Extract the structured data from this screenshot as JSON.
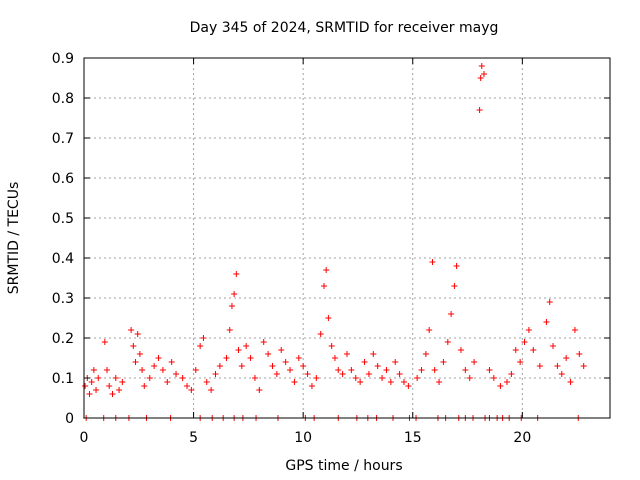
{
  "chart_data": {
    "type": "scatter",
    "title": "Day 345 of 2024, SRMTID for receiver mayg",
    "xlabel": "GPS time / hours",
    "ylabel": "SRMTID / TECUs",
    "xlim": [
      0,
      24
    ],
    "ylim": [
      0,
      0.9
    ],
    "xticks": [
      0,
      5,
      10,
      15,
      20
    ],
    "xtick_labels": [
      "0",
      "5",
      "10",
      "15",
      "20"
    ],
    "yticks": [
      0,
      0.1,
      0.2,
      0.3,
      0.4,
      0.5,
      0.6,
      0.7,
      0.8,
      0.9
    ],
    "ytick_labels": [
      "0",
      "0.1",
      "0.2",
      "0.3",
      "0.4",
      "0.5",
      "0.6",
      "0.7",
      "0.8",
      "0.9"
    ],
    "grid": true,
    "marker": "+",
    "color": "#ff0000",
    "series": [
      {
        "name": "SRMTID",
        "points": [
          [
            0.05,
            0.08
          ],
          [
            0.15,
            0.1
          ],
          [
            0.25,
            0.06
          ],
          [
            0.35,
            0.09
          ],
          [
            0.45,
            0.12
          ],
          [
            0.55,
            0.07
          ],
          [
            0.65,
            0.1
          ],
          [
            0.95,
            0.19
          ],
          [
            1.05,
            0.12
          ],
          [
            1.15,
            0.08
          ],
          [
            1.3,
            0.06
          ],
          [
            1.45,
            0.1
          ],
          [
            1.6,
            0.07
          ],
          [
            1.75,
            0.09
          ],
          [
            2.15,
            0.22
          ],
          [
            2.25,
            0.18
          ],
          [
            2.35,
            0.14
          ],
          [
            2.45,
            0.21
          ],
          [
            2.55,
            0.16
          ],
          [
            2.65,
            0.12
          ],
          [
            2.75,
            0.08
          ],
          [
            3.0,
            0.1
          ],
          [
            3.2,
            0.13
          ],
          [
            3.4,
            0.15
          ],
          [
            3.6,
            0.12
          ],
          [
            3.8,
            0.09
          ],
          [
            4.0,
            0.14
          ],
          [
            4.2,
            0.11
          ],
          [
            4.5,
            0.1
          ],
          [
            4.7,
            0.08
          ],
          [
            4.9,
            0.07
          ],
          [
            5.1,
            0.12
          ],
          [
            5.3,
            0.18
          ],
          [
            5.45,
            0.2
          ],
          [
            5.6,
            0.09
          ],
          [
            5.8,
            0.07
          ],
          [
            6.0,
            0.11
          ],
          [
            6.2,
            0.13
          ],
          [
            6.5,
            0.15
          ],
          [
            6.65,
            0.22
          ],
          [
            6.75,
            0.28
          ],
          [
            6.85,
            0.31
          ],
          [
            6.95,
            0.36
          ],
          [
            7.05,
            0.17
          ],
          [
            7.2,
            0.13
          ],
          [
            7.4,
            0.18
          ],
          [
            7.6,
            0.15
          ],
          [
            7.8,
            0.1
          ],
          [
            8.0,
            0.07
          ],
          [
            8.2,
            0.19
          ],
          [
            8.4,
            0.16
          ],
          [
            8.6,
            0.13
          ],
          [
            8.8,
            0.11
          ],
          [
            9.0,
            0.17
          ],
          [
            9.2,
            0.14
          ],
          [
            9.4,
            0.12
          ],
          [
            9.6,
            0.09
          ],
          [
            9.8,
            0.15
          ],
          [
            10.0,
            0.13
          ],
          [
            10.2,
            0.11
          ],
          [
            10.4,
            0.08
          ],
          [
            10.6,
            0.1
          ],
          [
            10.8,
            0.21
          ],
          [
            10.95,
            0.33
          ],
          [
            11.05,
            0.37
          ],
          [
            11.15,
            0.25
          ],
          [
            11.3,
            0.18
          ],
          [
            11.45,
            0.15
          ],
          [
            11.6,
            0.12
          ],
          [
            11.8,
            0.11
          ],
          [
            12.0,
            0.16
          ],
          [
            12.2,
            0.12
          ],
          [
            12.4,
            0.1
          ],
          [
            12.6,
            0.09
          ],
          [
            12.8,
            0.14
          ],
          [
            13.0,
            0.11
          ],
          [
            13.2,
            0.16
          ],
          [
            13.4,
            0.13
          ],
          [
            13.6,
            0.1
          ],
          [
            13.8,
            0.12
          ],
          [
            14.0,
            0.09
          ],
          [
            14.2,
            0.14
          ],
          [
            14.4,
            0.11
          ],
          [
            14.6,
            0.09
          ],
          [
            14.8,
            0.08
          ],
          [
            15.2,
            0.1
          ],
          [
            15.4,
            0.12
          ],
          [
            15.6,
            0.16
          ],
          [
            15.75,
            0.22
          ],
          [
            15.9,
            0.39
          ],
          [
            16.0,
            0.12
          ],
          [
            16.2,
            0.09
          ],
          [
            16.4,
            0.14
          ],
          [
            16.6,
            0.19
          ],
          [
            16.75,
            0.26
          ],
          [
            16.9,
            0.33
          ],
          [
            17.0,
            0.38
          ],
          [
            17.2,
            0.17
          ],
          [
            17.4,
            0.12
          ],
          [
            17.6,
            0.1
          ],
          [
            17.8,
            0.14
          ],
          [
            18.05,
            0.77
          ],
          [
            18.1,
            0.85
          ],
          [
            18.15,
            0.88
          ],
          [
            18.25,
            0.86
          ],
          [
            18.5,
            0.12
          ],
          [
            18.7,
            0.1
          ],
          [
            19.0,
            0.08
          ],
          [
            19.3,
            0.09
          ],
          [
            19.5,
            0.11
          ],
          [
            19.7,
            0.17
          ],
          [
            19.9,
            0.14
          ],
          [
            20.1,
            0.19
          ],
          [
            20.3,
            0.22
          ],
          [
            20.5,
            0.17
          ],
          [
            20.8,
            0.13
          ],
          [
            21.1,
            0.24
          ],
          [
            21.25,
            0.29
          ],
          [
            21.4,
            0.18
          ],
          [
            21.6,
            0.13
          ],
          [
            21.8,
            0.11
          ],
          [
            22.0,
            0.15
          ],
          [
            22.2,
            0.09
          ],
          [
            22.4,
            0.22
          ],
          [
            22.6,
            0.16
          ],
          [
            22.8,
            0.13
          ]
        ],
        "zero_points": [
          0.1,
          0.9,
          1.45,
          2.05,
          2.85,
          3.95,
          5.3,
          5.85,
          6.35,
          6.85,
          7.25,
          7.85,
          8.85,
          10.1,
          10.5,
          11.6,
          12.45,
          12.95,
          13.35,
          14.1,
          14.85,
          15.15,
          16.15,
          16.5,
          17.1,
          17.4,
          17.75,
          18.3,
          18.5,
          18.85,
          19.1,
          19.4,
          19.95,
          20.7,
          22.55
        ]
      }
    ]
  }
}
